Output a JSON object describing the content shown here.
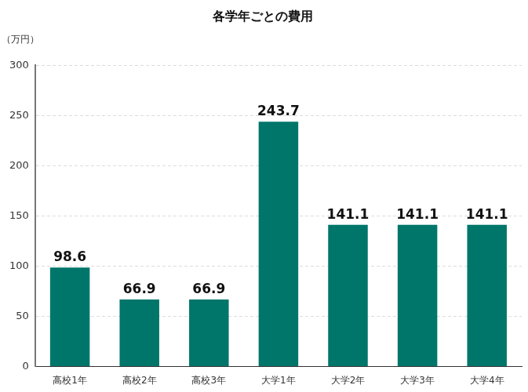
{
  "chart_data": {
    "type": "bar",
    "title": "各学年ごとの費用",
    "y_label": "（万円）",
    "categories": [
      "高校1年",
      "高校2年",
      "高校3年",
      "大学1年",
      "大学2年",
      "大学3年",
      "大学4年"
    ],
    "values": [
      98.6,
      66.9,
      66.9,
      243.7,
      141.1,
      141.1,
      141.1
    ],
    "color": "#00766a",
    "ylim": [
      0,
      300
    ],
    "yticks": [
      0,
      50,
      100,
      150,
      200,
      250,
      300
    ],
    "grid": true,
    "data_labels": true
  }
}
